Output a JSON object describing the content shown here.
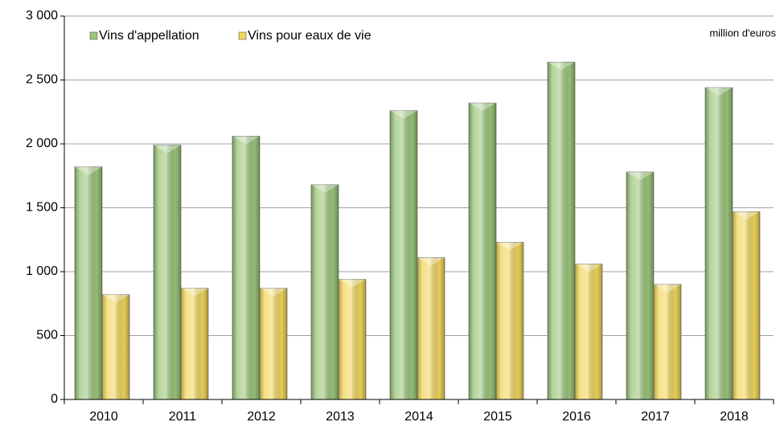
{
  "chart_data": {
    "type": "bar",
    "unit_label": "million d'euros",
    "categories": [
      "2010",
      "2011",
      "2012",
      "2013",
      "2014",
      "2015",
      "2016",
      "2017",
      "2018"
    ],
    "series": [
      {
        "name": "Vins d'appellation",
        "color": "#9cc67c",
        "values": [
          1820,
          1990,
          2060,
          1680,
          2260,
          2320,
          2640,
          1780,
          2440
        ]
      },
      {
        "name": "Vins pour eaux de vie",
        "color": "#f2d75e",
        "values": [
          820,
          870,
          870,
          940,
          1110,
          1230,
          1060,
          900,
          1470
        ]
      }
    ],
    "ylim": [
      0,
      3000
    ],
    "yticks": [
      0,
      500,
      {
        "value": 1000,
        "label": "1 000"
      },
      {
        "value": 1500,
        "label": "1 500"
      },
      {
        "value": 2000,
        "label": "2 000"
      },
      {
        "value": 2500,
        "label": "2 500"
      },
      {
        "value": 3000,
        "label": "3 000"
      }
    ],
    "grid": true,
    "legend": "top-left"
  }
}
